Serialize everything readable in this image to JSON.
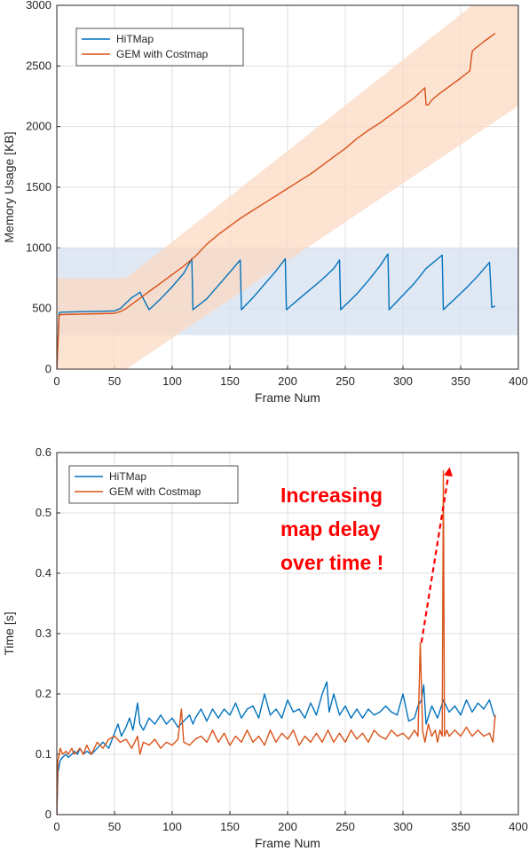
{
  "chart_data": [
    {
      "type": "line",
      "title": "",
      "xlabel": "Frame Num",
      "ylabel": "Memory Usage [KB]",
      "xlim": [
        0,
        400
      ],
      "ylim": [
        0,
        3000
      ],
      "xticks": [
        "0",
        "50",
        "100",
        "150",
        "200",
        "250",
        "300",
        "350",
        "400"
      ],
      "yticks": [
        "0",
        "500",
        "1000",
        "1500",
        "2000",
        "2500",
        "3000"
      ],
      "grid": true,
      "legend_position": "top-left",
      "bands": [
        {
          "series": "HiTMap",
          "color": "#d6e0f0",
          "x": [
            0,
            400
          ],
          "lower": [
            280,
            280
          ],
          "upper": [
            1000,
            1000
          ]
        },
        {
          "series": "GEM with Costmap",
          "color": "#fbd9c3",
          "x": [
            0,
            60,
            400
          ],
          "lower": [
            0,
            0,
            2170
          ],
          "upper": [
            750,
            750,
            3300
          ]
        }
      ],
      "series": [
        {
          "name": "HiTMap",
          "color": "#0072bd",
          "x": [
            0,
            2,
            3,
            50,
            55,
            60,
            65,
            70,
            72,
            80,
            90,
            100,
            110,
            117,
            118,
            130,
            140,
            150,
            159,
            160,
            170,
            180,
            190,
            198,
            199,
            210,
            220,
            230,
            240,
            245,
            246,
            260,
            270,
            280,
            287,
            288,
            300,
            310,
            320,
            334,
            335,
            345,
            355,
            365,
            375,
            377,
            380
          ],
          "y": [
            0,
            460,
            470,
            480,
            500,
            545,
            590,
            620,
            635,
            490,
            580,
            680,
            790,
            910,
            490,
            580,
            690,
            800,
            900,
            490,
            590,
            700,
            810,
            910,
            490,
            580,
            660,
            740,
            830,
            900,
            490,
            620,
            730,
            850,
            950,
            490,
            610,
            710,
            830,
            940,
            490,
            580,
            670,
            770,
            880,
            510,
            520
          ]
        },
        {
          "name": "GEM with Costmap",
          "color": "#d95319",
          "x": [
            0,
            2,
            3,
            50,
            55,
            60,
            70,
            80,
            90,
            100,
            110,
            120,
            130,
            140,
            150,
            160,
            170,
            180,
            190,
            200,
            210,
            220,
            230,
            240,
            250,
            260,
            270,
            280,
            290,
            300,
            310,
            319,
            320,
            322,
            325,
            330,
            340,
            350,
            358,
            360,
            362,
            370,
            380
          ],
          "y": [
            0,
            440,
            450,
            460,
            475,
            500,
            570,
            640,
            710,
            780,
            850,
            930,
            1030,
            1110,
            1180,
            1250,
            1310,
            1370,
            1430,
            1490,
            1550,
            1610,
            1680,
            1750,
            1820,
            1900,
            1970,
            2030,
            2100,
            2170,
            2240,
            2320,
            2180,
            2180,
            2220,
            2260,
            2330,
            2400,
            2460,
            2620,
            2640,
            2700,
            2770
          ]
        }
      ]
    },
    {
      "type": "line",
      "title": "",
      "xlabel": "Frame Num",
      "ylabel": "Time [s]",
      "xlim": [
        0,
        400
      ],
      "ylim": [
        0,
        0.6
      ],
      "xticks": [
        "0",
        "50",
        "100",
        "150",
        "200",
        "250",
        "300",
        "350",
        "400"
      ],
      "yticks": [
        "0",
        "0.1",
        "0.2",
        "0.3",
        "0.4",
        "0.5",
        "0.6"
      ],
      "grid": true,
      "legend_position": "top-left",
      "annotation": {
        "lines": [
          "Increasing",
          "map delay",
          "over time !"
        ],
        "color": "#ff0000",
        "arrow": {
          "from": [
            316,
            0.285
          ],
          "to": [
            340,
            0.57
          ]
        }
      },
      "series": [
        {
          "name": "HiTMap",
          "color": "#0072bd",
          "x": [
            0,
            1,
            3,
            5,
            8,
            10,
            13,
            15,
            18,
            20,
            23,
            26,
            30,
            35,
            40,
            45,
            50,
            53,
            56,
            60,
            63,
            66,
            70,
            72,
            75,
            80,
            85,
            90,
            95,
            100,
            105,
            110,
            115,
            118,
            120,
            125,
            130,
            135,
            140,
            145,
            150,
            155,
            160,
            165,
            170,
            175,
            180,
            185,
            190,
            195,
            200,
            205,
            210,
            215,
            220,
            225,
            230,
            234,
            236,
            240,
            245,
            250,
            255,
            260,
            265,
            270,
            275,
            280,
            285,
            290,
            295,
            300,
            305,
            310,
            313,
            316,
            318,
            320,
            325,
            330,
            335,
            340,
            345,
            350,
            355,
            360,
            365,
            370,
            375,
            378,
            380
          ],
          "y": [
            0,
            0.07,
            0.09,
            0.095,
            0.1,
            0.095,
            0.1,
            0.105,
            0.1,
            0.11,
            0.1,
            0.105,
            0.1,
            0.11,
            0.12,
            0.11,
            0.135,
            0.15,
            0.13,
            0.145,
            0.16,
            0.14,
            0.185,
            0.15,
            0.14,
            0.16,
            0.15,
            0.165,
            0.15,
            0.16,
            0.145,
            0.155,
            0.165,
            0.15,
            0.16,
            0.175,
            0.155,
            0.175,
            0.16,
            0.175,
            0.165,
            0.185,
            0.16,
            0.175,
            0.18,
            0.16,
            0.2,
            0.165,
            0.175,
            0.16,
            0.19,
            0.17,
            0.175,
            0.16,
            0.185,
            0.165,
            0.2,
            0.22,
            0.17,
            0.2,
            0.165,
            0.18,
            0.16,
            0.175,
            0.16,
            0.175,
            0.165,
            0.17,
            0.18,
            0.17,
            0.165,
            0.2,
            0.155,
            0.16,
            0.18,
            0.19,
            0.215,
            0.15,
            0.18,
            0.16,
            0.19,
            0.17,
            0.18,
            0.165,
            0.19,
            0.17,
            0.185,
            0.175,
            0.19,
            0.17,
            0.16
          ]
        },
        {
          "name": "GEM with Costmap",
          "color": "#d95319",
          "x": [
            0,
            1,
            3,
            5,
            8,
            10,
            13,
            15,
            18,
            20,
            23,
            26,
            30,
            35,
            40,
            45,
            50,
            55,
            60,
            65,
            70,
            72,
            75,
            80,
            85,
            90,
            95,
            100,
            105,
            108,
            110,
            115,
            120,
            125,
            130,
            135,
            140,
            145,
            150,
            155,
            160,
            165,
            170,
            175,
            180,
            185,
            190,
            195,
            200,
            205,
            210,
            215,
            220,
            225,
            230,
            235,
            240,
            245,
            250,
            255,
            260,
            265,
            270,
            275,
            280,
            285,
            290,
            295,
            300,
            305,
            310,
            313,
            315,
            317,
            319,
            322,
            325,
            328,
            330,
            332,
            334,
            335,
            336,
            338,
            340,
            345,
            350,
            355,
            360,
            365,
            370,
            375,
            378,
            380
          ],
          "y": [
            0,
            0.09,
            0.11,
            0.1,
            0.105,
            0.1,
            0.11,
            0.1,
            0.105,
            0.11,
            0.1,
            0.115,
            0.1,
            0.12,
            0.11,
            0.125,
            0.13,
            0.12,
            0.125,
            0.11,
            0.13,
            0.1,
            0.12,
            0.115,
            0.125,
            0.11,
            0.12,
            0.115,
            0.125,
            0.175,
            0.12,
            0.115,
            0.125,
            0.13,
            0.12,
            0.14,
            0.12,
            0.135,
            0.115,
            0.13,
            0.12,
            0.14,
            0.12,
            0.13,
            0.115,
            0.14,
            0.12,
            0.135,
            0.125,
            0.14,
            0.115,
            0.13,
            0.12,
            0.135,
            0.12,
            0.14,
            0.12,
            0.135,
            0.12,
            0.14,
            0.125,
            0.135,
            0.12,
            0.14,
            0.13,
            0.125,
            0.14,
            0.13,
            0.135,
            0.125,
            0.14,
            0.13,
            0.285,
            0.14,
            0.12,
            0.15,
            0.13,
            0.14,
            0.12,
            0.14,
            0.13,
            0.57,
            0.13,
            0.14,
            0.13,
            0.14,
            0.13,
            0.145,
            0.13,
            0.14,
            0.13,
            0.135,
            0.12,
            0.165
          ]
        }
      ]
    }
  ]
}
